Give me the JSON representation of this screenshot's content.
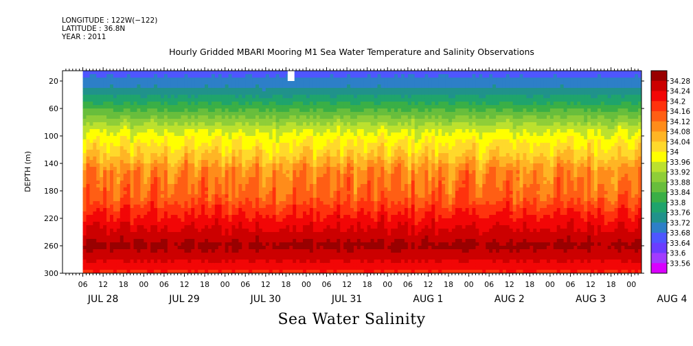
{
  "meta": {
    "longitude": "LONGITUDE : 122W(−122)",
    "latitude": "LATITUDE : 36.8N",
    "year": "YEAR : 2011"
  },
  "chart_data": {
    "type": "heatmap",
    "title": "Hourly Gridded MBARI Mooring M1 Sea Water Temperature and Salinity Observations",
    "xlabel": "Sea Water Salinity",
    "ylabel": "DEPTH (m)",
    "x_hour_ticks": [
      "06",
      "12",
      "18",
      "00",
      "06",
      "12",
      "18",
      "00",
      "06",
      "12",
      "18",
      "00",
      "06",
      "12",
      "18",
      "00",
      "06",
      "12",
      "18",
      "00",
      "06",
      "12",
      "18",
      "00",
      "06",
      "12",
      "18",
      "00"
    ],
    "x_day_labels": [
      "JUL 28",
      "JUL 29",
      "JUL 30",
      "JUL 31",
      "AUG  1",
      "AUG  2",
      "AUG  3",
      "AUG  4"
    ],
    "x_hours_range": [
      0,
      171
    ],
    "data_start_hour": 6,
    "ylim": [
      300,
      5
    ],
    "y_ticks": [
      20,
      60,
      100,
      140,
      180,
      220,
      260,
      300
    ],
    "colorbar_levels": [
      33.56,
      33.6,
      33.64,
      33.68,
      33.72,
      33.76,
      33.8,
      33.84,
      33.88,
      33.92,
      33.96,
      34,
      34.04,
      34.08,
      34.12,
      34.16,
      34.2,
      34.24,
      34.28
    ],
    "colorbar_labels": [
      "34.28",
      "34.24",
      "34.2",
      "34.16",
      "34.12",
      "34.08",
      "34.04",
      "34",
      "33.96",
      "33.92",
      "33.88",
      "33.84",
      "33.8",
      "33.76",
      "33.72",
      "33.68",
      "33.64",
      "33.6",
      "33.56"
    ],
    "colorbar_colors": [
      "#d900ff",
      "#a23bff",
      "#6b3cff",
      "#4e56ff",
      "#2d7fc8",
      "#20928b",
      "#1fa46c",
      "#3aaf46",
      "#68be3c",
      "#8fce38",
      "#bce12e",
      "#ffff00",
      "#ffd92b",
      "#ffb524",
      "#ff8c1a",
      "#ff5e14",
      "#ff320d",
      "#f20606",
      "#cc0000",
      "#990000"
    ],
    "profile": [
      {
        "depth": 10,
        "value": 33.67
      },
      {
        "depth": 30,
        "value": 33.72
      },
      {
        "depth": 50,
        "value": 33.79
      },
      {
        "depth": 70,
        "value": 33.87
      },
      {
        "depth": 90,
        "value": 33.95
      },
      {
        "depth": 110,
        "value": 34.0
      },
      {
        "depth": 130,
        "value": 34.04
      },
      {
        "depth": 150,
        "value": 34.1
      },
      {
        "depth": 170,
        "value": 34.12
      },
      {
        "depth": 190,
        "value": 34.14
      },
      {
        "depth": 210,
        "value": 34.19
      },
      {
        "depth": 230,
        "value": 34.23
      },
      {
        "depth": 250,
        "value": 34.27
      },
      {
        "depth": 260,
        "value": 34.29
      },
      {
        "depth": 275,
        "value": 34.26
      },
      {
        "depth": 290,
        "value": 34.22
      },
      {
        "depth": 300,
        "value": 34.19
      }
    ]
  }
}
